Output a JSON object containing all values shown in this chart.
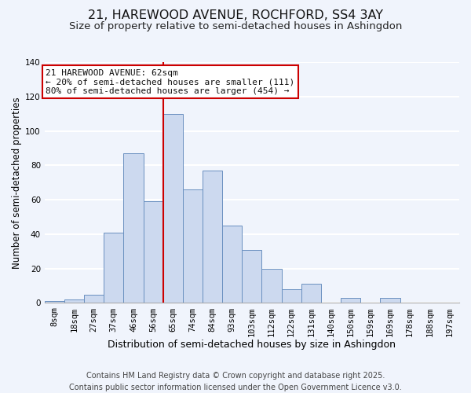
{
  "title": "21, HAREWOOD AVENUE, ROCHFORD, SS4 3AY",
  "subtitle": "Size of property relative to semi-detached houses in Ashingdon",
  "xlabel": "Distribution of semi-detached houses by size in Ashingdon",
  "ylabel": "Number of semi-detached properties",
  "bar_labels": [
    "8sqm",
    "18sqm",
    "27sqm",
    "37sqm",
    "46sqm",
    "56sqm",
    "65sqm",
    "74sqm",
    "84sqm",
    "93sqm",
    "103sqm",
    "112sqm",
    "122sqm",
    "131sqm",
    "140sqm",
    "150sqm",
    "159sqm",
    "169sqm",
    "178sqm",
    "188sqm",
    "197sqm"
  ],
  "bar_values": [
    1,
    2,
    5,
    41,
    87,
    59,
    110,
    66,
    77,
    45,
    31,
    20,
    8,
    11,
    0,
    3,
    0,
    3,
    0,
    0,
    0
  ],
  "bar_color": "#ccd9ef",
  "bar_edge_color": "#6a90c0",
  "vline_x": 5.5,
  "vline_color": "#cc0000",
  "annotation_title": "21 HAREWOOD AVENUE: 62sqm",
  "annotation_line1": "← 20% of semi-detached houses are smaller (111)",
  "annotation_line2": "80% of semi-detached houses are larger (454) →",
  "annotation_box_facecolor": "#ffffff",
  "annotation_box_edgecolor": "#cc0000",
  "ylim": [
    0,
    140
  ],
  "yticks": [
    0,
    20,
    40,
    60,
    80,
    100,
    120,
    140
  ],
  "footer1": "Contains HM Land Registry data © Crown copyright and database right 2025.",
  "footer2": "Contains public sector information licensed under the Open Government Licence v3.0.",
  "bg_color": "#f0f4fc",
  "grid_color": "#ffffff",
  "title_fontsize": 11.5,
  "subtitle_fontsize": 9.5,
  "xlabel_fontsize": 9,
  "ylabel_fontsize": 8.5,
  "tick_fontsize": 7.5,
  "annotation_fontsize": 8,
  "footer_fontsize": 7
}
